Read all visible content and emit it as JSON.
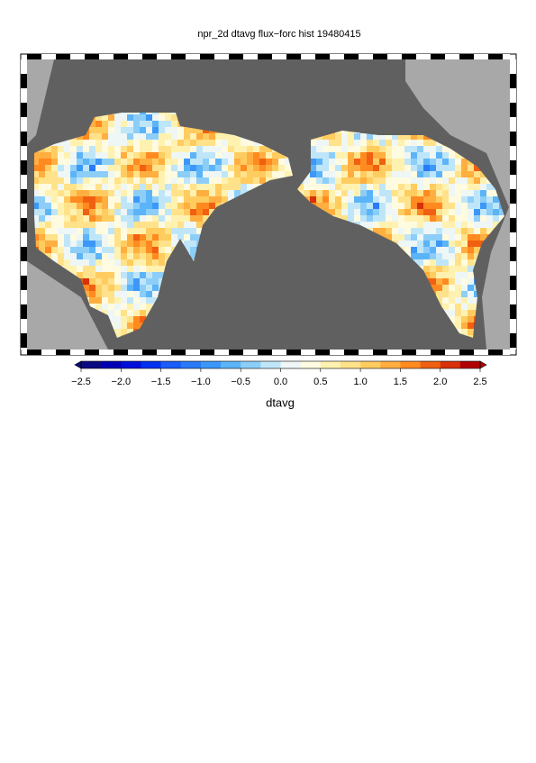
{
  "header": {
    "title": "npr_2d dtavg flux−forc hist 19480415"
  },
  "colorbar": {
    "label": "dtavg",
    "lim": [
      -2.5,
      2.5
    ],
    "ticks": [
      {
        "value": -2.5,
        "label": "−2.5"
      },
      {
        "value": -2.0,
        "label": "−2.0"
      },
      {
        "value": -1.5,
        "label": "−1.5"
      },
      {
        "value": -1.0,
        "label": "−1.0"
      },
      {
        "value": -0.5,
        "label": "−0.5"
      },
      {
        "value": 0,
        "label": "0.0"
      },
      0.5,
      {
        "value": 1.0,
        "label": "1.0"
      },
      1.5,
      {
        "value": 2.0,
        "label": "2.0"
      },
      2.5
    ],
    "colors": [
      "#0a0a80",
      "#0000b4",
      "#0010d8",
      "#0030f0",
      "#1a5cf8",
      "#2a7af8",
      "#3c98f8",
      "#5cb4f8",
      "#8ccef8",
      "#bfe6f8",
      "#eef6f6",
      "#fffbe0",
      "#fff2b0",
      "#ffe28a",
      "#ffcc60",
      "#ffae40",
      "#ff8a20",
      "#f06010",
      "#d83008",
      "#b00000"
    ]
  }
}
